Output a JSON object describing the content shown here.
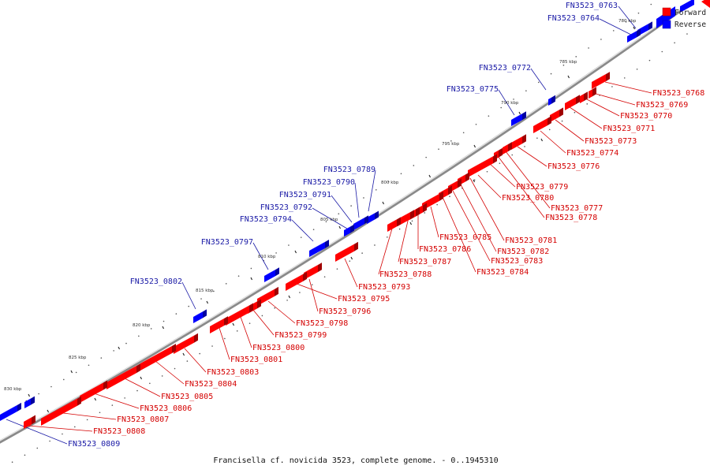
{
  "legend": {
    "forward": {
      "label": "Forward",
      "color": "#ff0000"
    },
    "reverse": {
      "label": "Reverse",
      "color": "#0000ff"
    }
  },
  "caption": "Francisella cf. novicida 3523, complete genome. - 0..1945310",
  "ticks": [
    "780 kbp",
    "785 kbp",
    "790 kbp",
    "795 kbp",
    "800 kbp",
    "805 kbp",
    "810 kbp",
    "815 kbp",
    "820 kbp",
    "825 kbp",
    "830 kbp"
  ],
  "labels": {
    "g0763": "FN3523_0763",
    "g0764": "FN3523_0764",
    "g0768": "FN3523_0768",
    "g0769": "FN3523_0769",
    "g0770": "FN3523_0770",
    "g0771": "FN3523_0771",
    "g0772": "FN3523_0772",
    "g0773": "FN3523_0773",
    "g0774": "FN3523_0774",
    "g0775": "FN3523_0775",
    "g0776": "FN3523_0776",
    "g0777": "FN3523_0777",
    "g0778": "FN3523_0778",
    "g0779": "FN3523_0779",
    "g0780": "FN3523_0780",
    "g0781": "FN3523_0781",
    "g0782": "FN3523_0782",
    "g0783": "FN3523_0783",
    "g0784": "FN3523_0784",
    "g0785": "FN3523_0785",
    "g0786": "FN3523_0786",
    "g0787": "FN3523_0787",
    "g0788": "FN3523_0788",
    "g0789": "FN3523_0789",
    "g0790": "FN3523_0790",
    "g0791": "FN3523_0791",
    "g0792": "FN3523_0792",
    "g0793": "FN3523_0793",
    "g0794": "FN3523_0794",
    "g0795": "FN3523_0795",
    "g0796": "FN3523_0796",
    "g0797": "FN3523_0797",
    "g0798": "FN3523_0798",
    "g0799": "FN3523_0799",
    "g0800": "FN3523_0800",
    "g0801": "FN3523_0801",
    "g0802": "FN3523_0802",
    "g0803": "FN3523_0803",
    "g0804": "FN3523_0804",
    "g0805": "FN3523_0805",
    "g0806": "FN3523_0806",
    "g0807": "FN3523_0807",
    "g0808": "FN3523_0808",
    "g0809": "FN3523_0809"
  }
}
